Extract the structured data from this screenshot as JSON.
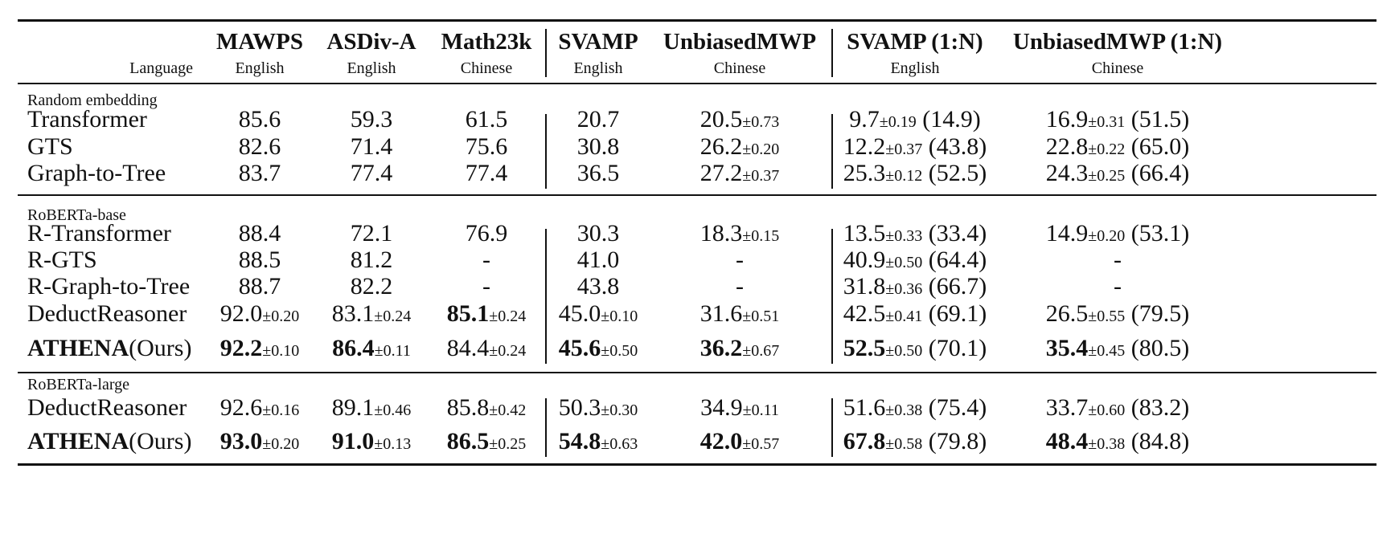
{
  "header": {
    "language_label": "Language",
    "columns": [
      {
        "name": "MAWPS",
        "lang": "English"
      },
      {
        "name": "ASDiv-A",
        "lang": "English"
      },
      {
        "name": "Math23k",
        "lang": "Chinese"
      },
      {
        "name": "SVAMP",
        "lang": "English"
      },
      {
        "name": "UnbiasedMWP",
        "lang": "Chinese"
      },
      {
        "name": "SVAMP (1:N)",
        "lang": "English"
      },
      {
        "name": "UnbiasedMWP (1:N)",
        "lang": "Chinese"
      }
    ]
  },
  "groups": [
    {
      "label": "Random embedding",
      "rows": [
        {
          "model": "Transformer",
          "model_bold": "",
          "model_suffix": "",
          "cells": [
            {
              "v": "85.6",
              "sd": "",
              "extra": "",
              "bold": false
            },
            {
              "v": "59.3",
              "sd": "",
              "extra": "",
              "bold": false
            },
            {
              "v": "61.5",
              "sd": "",
              "extra": "",
              "bold": false
            },
            {
              "v": "20.7",
              "sd": "",
              "extra": "",
              "bold": false
            },
            {
              "v": "20.5",
              "sd": "±0.73",
              "extra": "",
              "bold": false
            },
            {
              "v": "9.7",
              "sd": "±0.19",
              "extra": "(14.9)",
              "bold": false
            },
            {
              "v": "16.9",
              "sd": "±0.31",
              "extra": "(51.5)",
              "bold": false
            }
          ]
        },
        {
          "model": "GTS",
          "model_bold": "",
          "model_suffix": "",
          "cells": [
            {
              "v": "82.6",
              "sd": "",
              "extra": "",
              "bold": false
            },
            {
              "v": "71.4",
              "sd": "",
              "extra": "",
              "bold": false
            },
            {
              "v": "75.6",
              "sd": "",
              "extra": "",
              "bold": false
            },
            {
              "v": "30.8",
              "sd": "",
              "extra": "",
              "bold": false
            },
            {
              "v": "26.2",
              "sd": "±0.20",
              "extra": "",
              "bold": false
            },
            {
              "v": "12.2",
              "sd": "±0.37",
              "extra": "(43.8)",
              "bold": false
            },
            {
              "v": "22.8",
              "sd": "±0.22",
              "extra": "(65.0)",
              "bold": false
            }
          ]
        },
        {
          "model": "Graph-to-Tree",
          "model_bold": "",
          "model_suffix": "",
          "cells": [
            {
              "v": "83.7",
              "sd": "",
              "extra": "",
              "bold": false
            },
            {
              "v": "77.4",
              "sd": "",
              "extra": "",
              "bold": false
            },
            {
              "v": "77.4",
              "sd": "",
              "extra": "",
              "bold": false
            },
            {
              "v": "36.5",
              "sd": "",
              "extra": "",
              "bold": false
            },
            {
              "v": "27.2",
              "sd": "±0.37",
              "extra": "",
              "bold": false
            },
            {
              "v": "25.3",
              "sd": "±0.12",
              "extra": "(52.5)",
              "bold": false
            },
            {
              "v": "24.3",
              "sd": "±0.25",
              "extra": "(66.4)",
              "bold": false
            }
          ]
        }
      ]
    },
    {
      "label": "RoBERTa-base",
      "rows": [
        {
          "model": "R-Transformer",
          "model_bold": "",
          "model_suffix": "",
          "cells": [
            {
              "v": "88.4",
              "sd": "",
              "extra": "",
              "bold": false
            },
            {
              "v": "72.1",
              "sd": "",
              "extra": "",
              "bold": false
            },
            {
              "v": "76.9",
              "sd": "",
              "extra": "",
              "bold": false
            },
            {
              "v": "30.3",
              "sd": "",
              "extra": "",
              "bold": false
            },
            {
              "v": "18.3",
              "sd": "±0.15",
              "extra": "",
              "bold": false
            },
            {
              "v": "13.5",
              "sd": "±0.33",
              "extra": "(33.4)",
              "bold": false
            },
            {
              "v": "14.9",
              "sd": "±0.20",
              "extra": "(53.1)",
              "bold": false
            }
          ]
        },
        {
          "model": "R-GTS",
          "model_bold": "",
          "model_suffix": "",
          "cells": [
            {
              "v": "88.5",
              "sd": "",
              "extra": "",
              "bold": false
            },
            {
              "v": "81.2",
              "sd": "",
              "extra": "",
              "bold": false
            },
            {
              "v": "-",
              "sd": "",
              "extra": "",
              "bold": false
            },
            {
              "v": "41.0",
              "sd": "",
              "extra": "",
              "bold": false
            },
            {
              "v": "-",
              "sd": "",
              "extra": "",
              "bold": false
            },
            {
              "v": "40.9",
              "sd": "±0.50",
              "extra": "(64.4)",
              "bold": false
            },
            {
              "v": "-",
              "sd": "",
              "extra": "",
              "bold": false
            }
          ]
        },
        {
          "model": "R-Graph-to-Tree",
          "model_bold": "",
          "model_suffix": "",
          "cells": [
            {
              "v": "88.7",
              "sd": "",
              "extra": "",
              "bold": false
            },
            {
              "v": "82.2",
              "sd": "",
              "extra": "",
              "bold": false
            },
            {
              "v": "-",
              "sd": "",
              "extra": "",
              "bold": false
            },
            {
              "v": "43.8",
              "sd": "",
              "extra": "",
              "bold": false
            },
            {
              "v": "-",
              "sd": "",
              "extra": "",
              "bold": false
            },
            {
              "v": "31.8",
              "sd": "±0.36",
              "extra": "(66.7)",
              "bold": false
            },
            {
              "v": "-",
              "sd": "",
              "extra": "",
              "bold": false
            }
          ]
        },
        {
          "model": "DeductReasoner",
          "model_bold": "",
          "model_suffix": "",
          "cells": [
            {
              "v": "92.0",
              "sd": "±0.20",
              "extra": "",
              "bold": false
            },
            {
              "v": "83.1",
              "sd": "±0.24",
              "extra": "",
              "bold": false
            },
            {
              "v": "85.1",
              "sd": "±0.24",
              "extra": "",
              "bold": true
            },
            {
              "v": "45.0",
              "sd": "±0.10",
              "extra": "",
              "bold": false
            },
            {
              "v": "31.6",
              "sd": "±0.51",
              "extra": "",
              "bold": false
            },
            {
              "v": "42.5",
              "sd": "±0.41",
              "extra": "(69.1)",
              "bold": false
            },
            {
              "v": "26.5",
              "sd": "±0.55",
              "extra": "(79.5)",
              "bold": false
            }
          ]
        },
        {
          "model": "",
          "model_bold": "ATHENA",
          "model_suffix": "(Ours)",
          "cells": [
            {
              "v": "92.2",
              "sd": "±0.10",
              "extra": "",
              "bold": true
            },
            {
              "v": "86.4",
              "sd": "±0.11",
              "extra": "",
              "bold": true
            },
            {
              "v": "84.4",
              "sd": "±0.24",
              "extra": "",
              "bold": false
            },
            {
              "v": "45.6",
              "sd": "±0.50",
              "extra": "",
              "bold": true
            },
            {
              "v": "36.2",
              "sd": "±0.67",
              "extra": "",
              "bold": true
            },
            {
              "v": "52.5",
              "sd": "±0.50",
              "extra": "(70.1)",
              "bold": true
            },
            {
              "v": "35.4",
              "sd": "±0.45",
              "extra": "(80.5)",
              "bold": true
            }
          ]
        }
      ]
    },
    {
      "label": "RoBERTa-large",
      "rows": [
        {
          "model": "DeductReasoner",
          "model_bold": "",
          "model_suffix": "",
          "cells": [
            {
              "v": "92.6",
              "sd": "±0.16",
              "extra": "",
              "bold": false
            },
            {
              "v": "89.1",
              "sd": "±0.46",
              "extra": "",
              "bold": false
            },
            {
              "v": "85.8",
              "sd": "±0.42",
              "extra": "",
              "bold": false
            },
            {
              "v": "50.3",
              "sd": "±0.30",
              "extra": "",
              "bold": false
            },
            {
              "v": "34.9",
              "sd": "±0.11",
              "extra": "",
              "bold": false
            },
            {
              "v": "51.6",
              "sd": "±0.38",
              "extra": "(75.4)",
              "bold": false
            },
            {
              "v": "33.7",
              "sd": "±0.60",
              "extra": "(83.2)",
              "bold": false
            }
          ]
        },
        {
          "model": "",
          "model_bold": "ATHENA",
          "model_suffix": "(Ours)",
          "cells": [
            {
              "v": "93.0",
              "sd": "±0.20",
              "extra": "",
              "bold": true
            },
            {
              "v": "91.0",
              "sd": "±0.13",
              "extra": "",
              "bold": true
            },
            {
              "v": "86.5",
              "sd": "±0.25",
              "extra": "",
              "bold": true
            },
            {
              "v": "54.8",
              "sd": "±0.63",
              "extra": "",
              "bold": true
            },
            {
              "v": "42.0",
              "sd": "±0.57",
              "extra": "",
              "bold": true
            },
            {
              "v": "67.8",
              "sd": "±0.58",
              "extra": "(79.8)",
              "bold": true
            },
            {
              "v": "48.4",
              "sd": "±0.38",
              "extra": "(84.8)",
              "bold": true
            }
          ]
        }
      ]
    }
  ]
}
